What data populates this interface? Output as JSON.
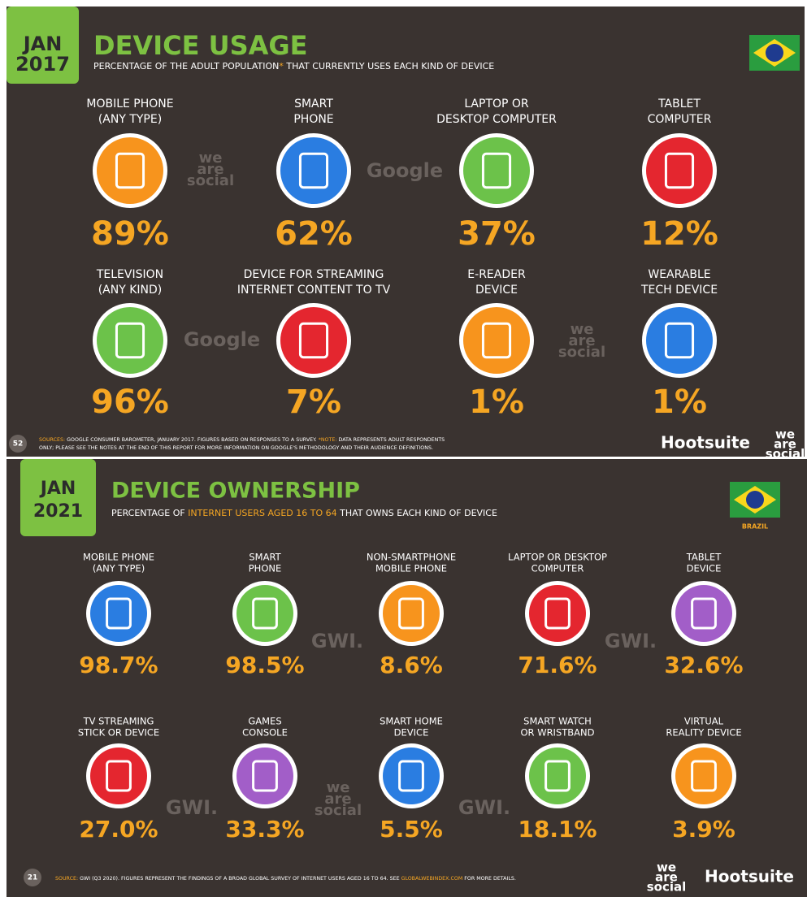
{
  "panels": [
    {
      "badge": {
        "month": "JAN",
        "year": "2017"
      },
      "title": "DEVICE USAGE",
      "subtitle": [
        {
          "text": "PERCENTAGE OF THE ADULT POPULATION",
          "color": "#ffffff"
        },
        {
          "text": "*",
          "color": "#f5a623"
        },
        {
          "text": " THAT CURRENTLY USES EACH KIND OF DEVICE",
          "color": "#ffffff"
        }
      ],
      "items": [
        {
          "label": [
            "MOBILE PHONE",
            "(ANY TYPE)"
          ],
          "value": "89%",
          "color": "#f7941d"
        },
        {
          "label": [
            "SMART",
            "PHONE"
          ],
          "value": "62%",
          "color": "#2a7de1"
        },
        {
          "label": [
            "LAPTOP OR",
            "DESKTOP COMPUTER"
          ],
          "value": "37%",
          "color": "#6cc24a"
        },
        {
          "label": [
            "TABLET",
            "COMPUTER"
          ],
          "value": "12%",
          "color": "#e4262f"
        },
        {
          "label": [
            "TELEVISION",
            "(ANY KIND)"
          ],
          "value": "96%",
          "color": "#6cc24a"
        },
        {
          "label": [
            "DEVICE FOR STREAMING",
            "INTERNET CONTENT TO TV"
          ],
          "value": "7%",
          "color": "#e4262f"
        },
        {
          "label": [
            "E-READER",
            "DEVICE"
          ],
          "value": "1%",
          "color": "#f7941d"
        },
        {
          "label": [
            "WEARABLE",
            "TECH DEVICE"
          ],
          "value": "1%",
          "color": "#2a7de1"
        }
      ],
      "watermarks": [
        [
          "we",
          "are",
          "social"
        ],
        [
          "Google"
        ],
        [
          "Google"
        ],
        [
          "we",
          "are",
          "social"
        ]
      ],
      "footer": {
        "page": "52",
        "sources": [
          [
            {
              "text": "SOURCES:",
              "color": "#f5a623"
            },
            {
              "text": " GOOGLE CONSUMER BAROMETER, JANUARY 2017. FIGURES BASED ON RESPONSES TO A SURVEY. ",
              "color": "#ffffff"
            },
            {
              "text": "*NOTE:",
              "color": "#f5a623"
            },
            {
              "text": " DATA REPRESENTS ADULT RESPONDENTS",
              "color": "#ffffff"
            }
          ],
          [
            {
              "text": "ONLY; PLEASE SEE THE NOTES AT THE END OF THIS REPORT FOR MORE INFORMATION ON GOOGLE'S METHODOLOGY AND THEIR AUDIENCE DEFINITIONS.",
              "color": "#ffffff"
            }
          ]
        ],
        "brands": [
          "Hootsuite",
          [
            "we",
            "are",
            "social"
          ]
        ]
      }
    },
    {
      "badge": {
        "month": "JAN",
        "year": "2021"
      },
      "title": "DEVICE OWNERSHIP",
      "subtitle": [
        {
          "text": "PERCENTAGE OF ",
          "color": "#ffffff"
        },
        {
          "text": "INTERNET USERS AGED 16 TO 64",
          "color": "#f5a623"
        },
        {
          "text": " THAT OWNS EACH KIND OF DEVICE",
          "color": "#ffffff"
        }
      ],
      "flag_label": "BRAZIL",
      "items": [
        {
          "label": [
            "MOBILE PHONE",
            "(ANY TYPE)"
          ],
          "value": "98.7%",
          "color": "#2a7de1"
        },
        {
          "label": [
            "SMART",
            "PHONE"
          ],
          "value": "98.5%",
          "color": "#6cc24a"
        },
        {
          "label": [
            "NON-SMARTPHONE",
            "MOBILE PHONE"
          ],
          "value": "8.6%",
          "color": "#f7941d"
        },
        {
          "label": [
            "LAPTOP OR DESKTOP",
            "COMPUTER"
          ],
          "value": "71.6%",
          "color": "#e4262f"
        },
        {
          "label": [
            "TABLET",
            "DEVICE"
          ],
          "value": "32.6%",
          "color": "#a25ec8"
        },
        {
          "label": [
            "TV STREAMING",
            "STICK OR DEVICE"
          ],
          "value": "27.0%",
          "color": "#e4262f"
        },
        {
          "label": [
            "GAMES",
            "CONSOLE"
          ],
          "value": "33.3%",
          "color": "#a25ec8"
        },
        {
          "label": [
            "SMART HOME",
            "DEVICE"
          ],
          "value": "5.5%",
          "color": "#2a7de1"
        },
        {
          "label": [
            "SMART WATCH",
            "OR WRISTBAND"
          ],
          "value": "18.1%",
          "color": "#6cc24a"
        },
        {
          "label": [
            "VIRTUAL",
            "REALITY DEVICE"
          ],
          "value": "3.9%",
          "color": "#f7941d"
        }
      ],
      "watermarks": [
        [
          "GWI."
        ],
        [
          "GWI."
        ],
        [
          "GWI."
        ],
        [
          "we",
          "are",
          "social"
        ],
        [
          "GWI."
        ]
      ],
      "footer": {
        "page": "21",
        "sources": [
          [
            {
              "text": "SOURCE:",
              "color": "#f5a623"
            },
            {
              "text": " GWI (Q3 2020). FIGURES REPRESENT THE FINDINGS OF A BROAD GLOBAL SURVEY OF INTERNET USERS AGED 16 TO 64. SEE ",
              "color": "#ffffff"
            },
            {
              "text": "GLOBALWEBINDEX.COM",
              "color": "#f5a623"
            },
            {
              "text": " FOR MORE DETAILS.",
              "color": "#ffffff"
            }
          ]
        ],
        "brands": [
          "Hootsuite",
          [
            "we",
            "are",
            "social"
          ]
        ]
      }
    }
  ]
}
